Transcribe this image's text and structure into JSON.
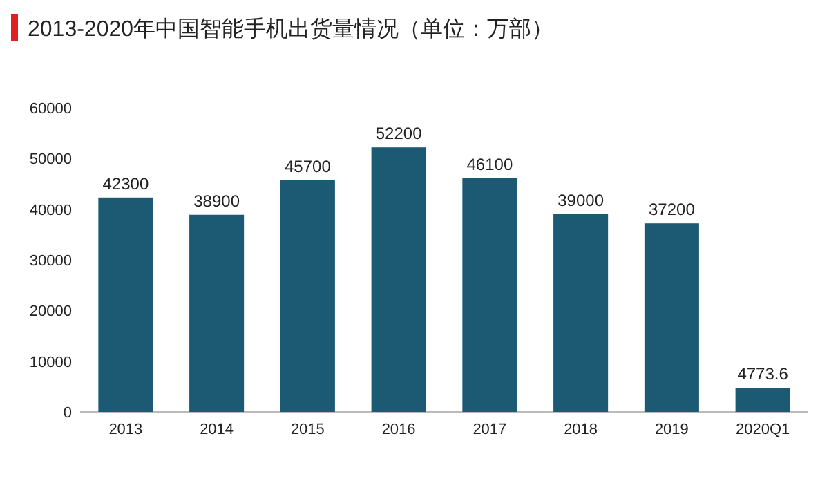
{
  "chart_data": {
    "type": "bar",
    "title": "2013-2020年中国智能手机出货量情况（单位：万部）",
    "categories": [
      "2013",
      "2014",
      "2015",
      "2016",
      "2017",
      "2018",
      "2019",
      "2020Q1"
    ],
    "values": [
      42300,
      38900,
      45700,
      52200,
      46100,
      39000,
      37200,
      4773.6
    ],
    "color": "#1b5a72",
    "ylim": [
      0,
      60000
    ],
    "yticks": [
      0,
      10000,
      20000,
      30000,
      40000,
      50000,
      60000
    ],
    "data_labels": true
  }
}
